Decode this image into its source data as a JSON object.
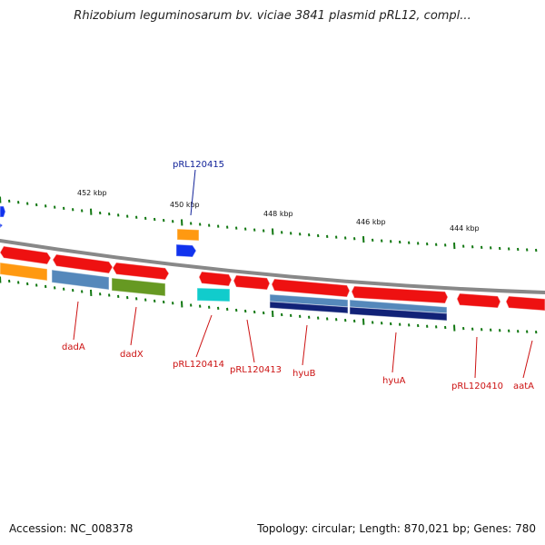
{
  "title": "Rhizobium leguminosarum bv. viciae 3841 plasmid pRL12, compl...",
  "footer": {
    "accession": "Accession: NC_008378",
    "summary": "Topology: circular; Length: 870,021 bp; Genes: 780"
  },
  "ticks": [
    {
      "label": "452 kbp"
    },
    {
      "label": "450 kbp"
    },
    {
      "label": "448 kbp"
    },
    {
      "label": "446 kbp"
    },
    {
      "label": "444 kbp"
    }
  ],
  "colors": {
    "red": "#ee1111",
    "orange": "#ff9911",
    "steelblue": "#5588bb",
    "olive": "#669922",
    "cyan": "#11cccc",
    "navy": "#112277",
    "blue": "#1133ee",
    "backbone": "#888888",
    "tick": "#117711",
    "label_red": "#cc1111",
    "label_blue": "#112299"
  },
  "gene_labels": [
    {
      "text": "pRL120415",
      "color": "label_blue"
    },
    {
      "text": "dadA",
      "color": "label_red"
    },
    {
      "text": "dadX",
      "color": "label_red"
    },
    {
      "text": "pRL120414",
      "color": "label_red"
    },
    {
      "text": "pRL120413",
      "color": "label_red"
    },
    {
      "text": "hyuB",
      "color": "label_red"
    },
    {
      "text": "hyuA",
      "color": "label_red"
    },
    {
      "text": "pRL120410",
      "color": "label_red"
    },
    {
      "text": "aatA",
      "color": "label_red"
    }
  ],
  "genes": [
    {
      "color": "blue"
    },
    {
      "color": "red"
    },
    {
      "color": "red"
    },
    {
      "color": "red"
    },
    {
      "color": "orange"
    },
    {
      "color": "steelblue"
    },
    {
      "color": "olive"
    },
    {
      "color": "orange"
    },
    {
      "color": "blue"
    },
    {
      "color": "red"
    },
    {
      "color": "red"
    },
    {
      "color": "red"
    },
    {
      "color": "red"
    },
    {
      "color": "cyan"
    },
    {
      "color": "steelblue"
    },
    {
      "color": "steelblue"
    },
    {
      "color": "navy"
    },
    {
      "color": "navy"
    },
    {
      "color": "red"
    },
    {
      "color": "red"
    },
    {
      "color": "blue"
    }
  ]
}
